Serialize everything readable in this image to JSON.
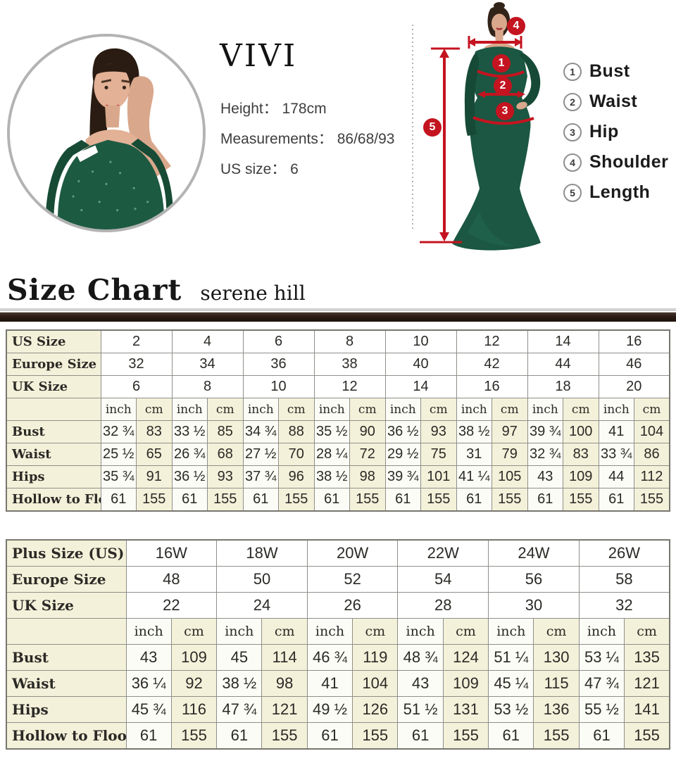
{
  "model_card": {
    "brand": "VIVI",
    "info_lines": [
      "Height： 178cm",
      "Measurements： 86/68/93",
      "US size： 6"
    ]
  },
  "figure": {
    "markers": [
      "1",
      "2",
      "3",
      "4",
      "5"
    ]
  },
  "legend": {
    "items": [
      {
        "num": "1",
        "label": "Bust"
      },
      {
        "num": "2",
        "label": "Waist"
      },
      {
        "num": "3",
        "label": "Hip"
      },
      {
        "num": "4",
        "label": "Shoulder"
      },
      {
        "num": "5",
        "label": "Length"
      }
    ]
  },
  "heading": {
    "title": "Size Chart",
    "subtitle": "serene hill"
  },
  "standard_table": {
    "units": [
      "inch",
      "cm"
    ],
    "size_rows": [
      {
        "label": "US Size",
        "values": [
          "2",
          "4",
          "6",
          "8",
          "10",
          "12",
          "14",
          "16"
        ]
      },
      {
        "label": "Europe Size",
        "values": [
          "32",
          "34",
          "36",
          "38",
          "40",
          "42",
          "44",
          "46"
        ]
      },
      {
        "label": "UK Size",
        "values": [
          "6",
          "8",
          "10",
          "12",
          "14",
          "16",
          "18",
          "20"
        ]
      }
    ],
    "measure_rows": [
      {
        "label": "Bust",
        "values": [
          [
            "32 ¾",
            "83"
          ],
          [
            "33 ½",
            "85"
          ],
          [
            "34 ¾",
            "88"
          ],
          [
            "35 ½",
            "90"
          ],
          [
            "36 ½",
            "93"
          ],
          [
            "38 ½",
            "97"
          ],
          [
            "39 ¾",
            "100"
          ],
          [
            "41",
            "104"
          ]
        ]
      },
      {
        "label": "Waist",
        "values": [
          [
            "25 ½",
            "65"
          ],
          [
            "26 ¾",
            "68"
          ],
          [
            "27 ½",
            "70"
          ],
          [
            "28 ¼",
            "72"
          ],
          [
            "29 ½",
            "75"
          ],
          [
            "31",
            "79"
          ],
          [
            "32 ¾",
            "83"
          ],
          [
            "33 ¾",
            "86"
          ]
        ]
      },
      {
        "label": "Hips",
        "values": [
          [
            "35 ¾",
            "91"
          ],
          [
            "36 ½",
            "93"
          ],
          [
            "37 ¾",
            "96"
          ],
          [
            "38 ½",
            "98"
          ],
          [
            "39 ¾",
            "101"
          ],
          [
            "41 ¼",
            "105"
          ],
          [
            "43",
            "109"
          ],
          [
            "44",
            "112"
          ]
        ]
      },
      {
        "label": "Hollow to Floor",
        "values": [
          [
            "61",
            "155"
          ],
          [
            "61",
            "155"
          ],
          [
            "61",
            "155"
          ],
          [
            "61",
            "155"
          ],
          [
            "61",
            "155"
          ],
          [
            "61",
            "155"
          ],
          [
            "61",
            "155"
          ],
          [
            "61",
            "155"
          ]
        ]
      }
    ]
  },
  "plus_table": {
    "units": [
      "inch",
      "cm"
    ],
    "size_rows": [
      {
        "label": "Plus Size (US)",
        "values": [
          "16W",
          "18W",
          "20W",
          "22W",
          "24W",
          "26W"
        ]
      },
      {
        "label": "Europe Size",
        "values": [
          "48",
          "50",
          "52",
          "54",
          "56",
          "58"
        ]
      },
      {
        "label": "UK Size",
        "values": [
          "22",
          "24",
          "26",
          "28",
          "30",
          "32"
        ]
      }
    ],
    "measure_rows": [
      {
        "label": "Bust",
        "values": [
          [
            "43",
            "109"
          ],
          [
            "45",
            "114"
          ],
          [
            "46 ¾",
            "119"
          ],
          [
            "48 ¾",
            "124"
          ],
          [
            "51 ¼",
            "130"
          ],
          [
            "53 ¼",
            "135"
          ]
        ]
      },
      {
        "label": "Waist",
        "values": [
          [
            "36 ¼",
            "92"
          ],
          [
            "38 ½",
            "98"
          ],
          [
            "41",
            "104"
          ],
          [
            "43",
            "109"
          ],
          [
            "45 ¼",
            "115"
          ],
          [
            "47 ¾",
            "121"
          ]
        ]
      },
      {
        "label": "Hips",
        "values": [
          [
            "45 ¾",
            "116"
          ],
          [
            "47 ¾",
            "121"
          ],
          [
            "49 ½",
            "126"
          ],
          [
            "51 ½",
            "131"
          ],
          [
            "53 ½",
            "136"
          ],
          [
            "55 ½",
            "141"
          ]
        ]
      },
      {
        "label": "Hollow to Floor",
        "values": [
          [
            "61",
            "155"
          ],
          [
            "61",
            "155"
          ],
          [
            "61",
            "155"
          ],
          [
            "61",
            "155"
          ],
          [
            "61",
            "155"
          ],
          [
            "61",
            "155"
          ]
        ]
      }
    ]
  },
  "colors": {
    "accent_red": "#c41420",
    "cream_cell": "#f4f1da",
    "bar_brown": "#2a1c15",
    "dress_green": "#1b5742"
  }
}
